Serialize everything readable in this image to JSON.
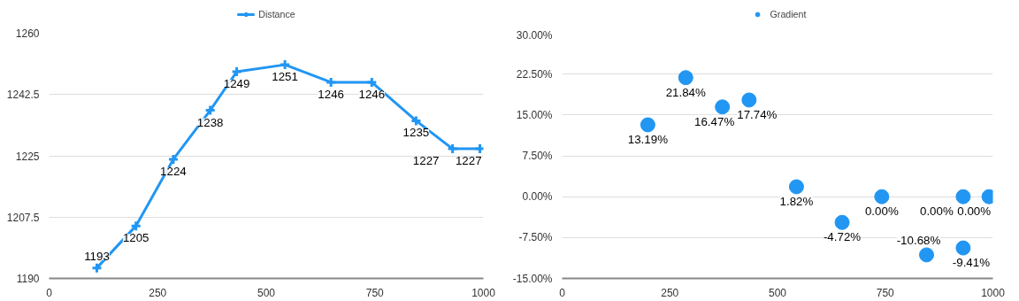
{
  "chart_data": [
    {
      "type": "line",
      "x": [
        110,
        200,
        286,
        371,
        432,
        543,
        649,
        743,
        845,
        929,
        992
      ],
      "series": [
        {
          "name": "Distance",
          "color": "#2196f3",
          "values": [
            1193,
            1205,
            1224,
            1238,
            1249,
            1251,
            1246,
            1246,
            1235,
            1227,
            1227
          ]
        }
      ],
      "marker": "cross",
      "data_labels": true,
      "legend": "top",
      "grid": "y",
      "xlim": [
        0,
        1000
      ],
      "xticks": [
        0,
        250,
        500,
        750,
        1000
      ],
      "ylim": [
        1190,
        1260
      ],
      "yticks": [
        1190,
        1207.5,
        1225,
        1242.5,
        1260
      ]
    },
    {
      "type": "scatter",
      "x": [
        199,
        287,
        372,
        434,
        544,
        650,
        742,
        846,
        931,
        931,
        991
      ],
      "series": [
        {
          "name": "Gradient",
          "color": "#2196f3",
          "values": [
            13.19,
            21.84,
            16.47,
            17.74,
            1.82,
            -4.72,
            0.0,
            -10.68,
            -9.41,
            0.0,
            0.0
          ],
          "value_labels": [
            "13.19%",
            "21.84%",
            "16.47%",
            "17.74%",
            "1.82%",
            "-4.72%",
            "0.00%",
            "-10.68%",
            "-9.41%",
            "0.00%",
            "0.00%"
          ]
        }
      ],
      "marker": "circle",
      "legend": "top",
      "grid": "y",
      "xlim": [
        0,
        1000
      ],
      "xticks": [
        0,
        250,
        500,
        750,
        1000
      ],
      "ylim": [
        -15,
        30
      ],
      "yticks": [
        {
          "value": -15,
          "label": "-15.00%"
        },
        {
          "value": -7.5,
          "label": "-7.50%"
        },
        {
          "value": 0,
          "label": "0.00%"
        },
        {
          "value": 7.5,
          "label": "7.50%"
        },
        {
          "value": 15,
          "label": "15.00%"
        },
        {
          "value": 22.5,
          "label": "22.50%"
        },
        {
          "value": 30,
          "label": "30.00%"
        }
      ]
    }
  ]
}
